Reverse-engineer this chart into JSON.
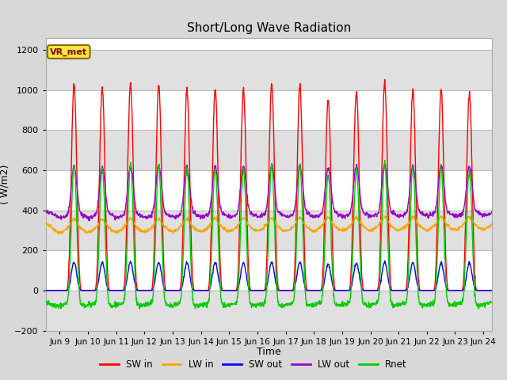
{
  "title": "Short/Long Wave Radiation",
  "ylabel": "( W/m2)",
  "xlabel": "Time",
  "annotation": "VR_met",
  "ylim": [
    -200,
    1260
  ],
  "yticks": [
    -200,
    0,
    200,
    400,
    600,
    800,
    1000,
    1200
  ],
  "xlim_days": [
    8.5,
    24.3
  ],
  "xtick_labels": [
    "Jun 9",
    "Jun 10",
    "Jun 11",
    "Jun 12",
    "Jun 13",
    "Jun 14",
    "Jun 15",
    "Jun 16",
    "Jun 17",
    "Jun 18",
    "Jun 19",
    "Jun 20",
    "Jun 21",
    "Jun 22",
    "Jun 23",
    "Jun 24"
  ],
  "xtick_positions": [
    9,
    10,
    11,
    12,
    13,
    14,
    15,
    16,
    17,
    18,
    19,
    20,
    21,
    22,
    23,
    24
  ],
  "colors": {
    "SW_in": "#ff0000",
    "LW_in": "#ffa500",
    "SW_out": "#0000ff",
    "LW_out": "#9900cc",
    "Rnet": "#00cc00"
  },
  "legend_labels": [
    "SW in",
    "LW in",
    "SW out",
    "LW out",
    "Rnet"
  ],
  "bg_color": "#d8d8d8",
  "plot_bg_light": "#ffffff",
  "plot_bg_dark": "#e0e0e0",
  "grid_color": "#bbbbbb",
  "SW_in_peaks": [
    1030,
    1010,
    1030,
    1030,
    1000,
    1010,
    1000,
    1030,
    1020,
    950,
    990,
    1030,
    1000,
    1000,
    980
  ],
  "LW_out_night": 375,
  "LW_in_base": 310,
  "SW_out_peak": 140,
  "Rnet_night": -100
}
